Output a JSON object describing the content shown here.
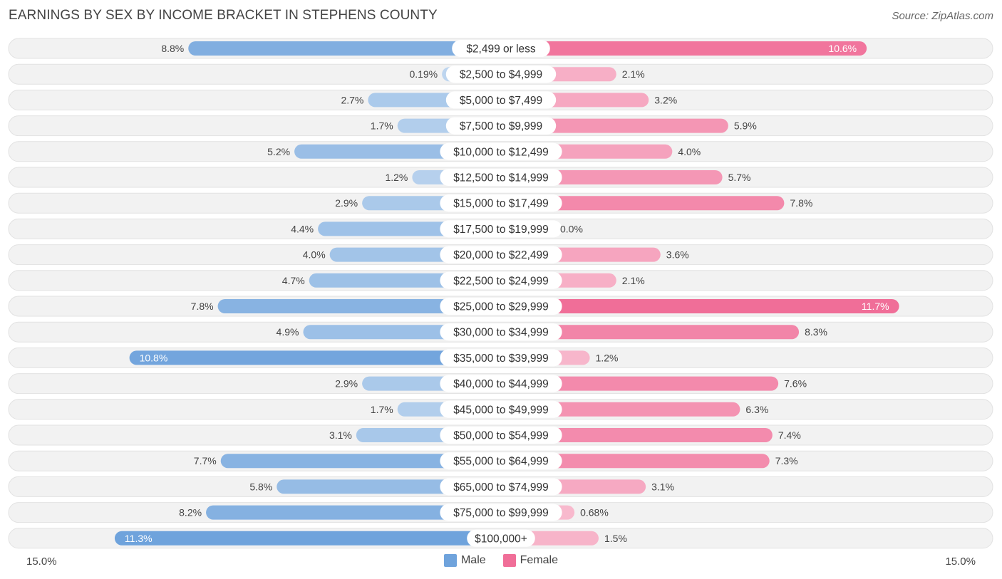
{
  "header": {
    "title": "EARNINGS BY SEX BY INCOME BRACKET IN STEPHENS COUNTY",
    "source": "Source: ZipAtlas.com"
  },
  "legend": {
    "male_label": "Male",
    "female_label": "Female"
  },
  "axis": {
    "left_label": "15.0%",
    "right_label": "15.0%"
  },
  "colors": {
    "male": "#6fa3dc",
    "female": "#f06e98"
  },
  "chart_data": {
    "type": "bar",
    "title": "EARNINGS BY SEX BY INCOME BRACKET IN STEPHENS COUNTY",
    "orientation": "horizontal-diverging",
    "xlim": [
      -15,
      15
    ],
    "categories": [
      "$2,499 or less",
      "$2,500 to $4,999",
      "$5,000 to $7,499",
      "$7,500 to $9,999",
      "$10,000 to $12,499",
      "$12,500 to $14,999",
      "$15,000 to $17,499",
      "$17,500 to $19,999",
      "$20,000 to $22,499",
      "$22,500 to $24,999",
      "$25,000 to $29,999",
      "$30,000 to $34,999",
      "$35,000 to $39,999",
      "$40,000 to $44,999",
      "$45,000 to $49,999",
      "$50,000 to $54,999",
      "$55,000 to $64,999",
      "$65,000 to $74,999",
      "$75,000 to $99,999",
      "$100,000+"
    ],
    "series": [
      {
        "name": "Male",
        "values": [
          8.8,
          0.19,
          2.7,
          1.7,
          5.2,
          1.2,
          2.9,
          4.4,
          4.0,
          4.7,
          7.8,
          4.9,
          10.8,
          2.9,
          1.7,
          3.1,
          7.7,
          5.8,
          8.2,
          11.3
        ],
        "labels": [
          "8.8%",
          "0.19%",
          "2.7%",
          "1.7%",
          "5.2%",
          "1.2%",
          "2.9%",
          "4.4%",
          "4.0%",
          "4.7%",
          "7.8%",
          "4.9%",
          "10.8%",
          "2.9%",
          "1.7%",
          "3.1%",
          "7.7%",
          "5.8%",
          "8.2%",
          "11.3%"
        ]
      },
      {
        "name": "Female",
        "values": [
          10.6,
          2.1,
          3.2,
          5.9,
          4.0,
          5.7,
          7.8,
          0.0,
          3.6,
          2.1,
          11.7,
          8.3,
          1.2,
          7.6,
          6.3,
          7.4,
          7.3,
          3.1,
          0.68,
          1.5
        ],
        "labels": [
          "10.6%",
          "2.1%",
          "3.2%",
          "5.9%",
          "4.0%",
          "5.7%",
          "7.8%",
          "0.0%",
          "3.6%",
          "2.1%",
          "11.7%",
          "8.3%",
          "1.2%",
          "7.6%",
          "6.3%",
          "7.4%",
          "7.3%",
          "3.1%",
          "0.68%",
          "1.5%"
        ]
      }
    ]
  }
}
